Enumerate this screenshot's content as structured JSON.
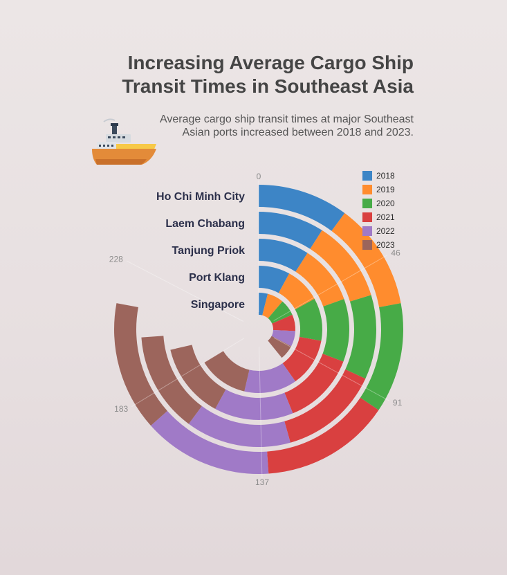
{
  "chart_data": {
    "type": "bar",
    "layout": "stacked-radial",
    "title_lines": [
      "Increasing Average Cargo Ship",
      "Transit Times in Southeast Asia"
    ],
    "subtitle_lines": [
      "Average cargo ship transit times at major Southeast",
      "Asian ports increased between 2018 and 2023."
    ],
    "categories": [
      "Ho Chi Minh City",
      "Laem Chabang",
      "Tanjung Priok",
      "Port Klang",
      "Singapore"
    ],
    "series": [
      {
        "name": "2018",
        "color": "#3d85c6",
        "values": [
          28,
          25,
          25,
          22,
          11
        ]
      },
      {
        "name": "2019",
        "color": "#ff8c2e",
        "values": [
          33,
          31,
          29,
          25,
          20
        ]
      },
      {
        "name": "2020",
        "color": "#47ab47",
        "values": [
          34,
          32,
          31,
          30,
          20
        ]
      },
      {
        "name": "2021",
        "color": "#d94040",
        "values": [
          40,
          38,
          36,
          34,
          20
        ]
      },
      {
        "name": "2022",
        "color": "#a07ac7",
        "values": [
          40,
          40,
          39,
          37,
          19
        ]
      },
      {
        "name": "2023",
        "color": "#9c655c",
        "values": [
          40,
          38,
          37,
          35,
          18
        ]
      }
    ],
    "angular_ticks": [
      0,
      46,
      91,
      137,
      183,
      228
    ],
    "angular_max": 276,
    "legend_position": "top-right",
    "grid": false,
    "icon": "cargo-ship-icon"
  }
}
